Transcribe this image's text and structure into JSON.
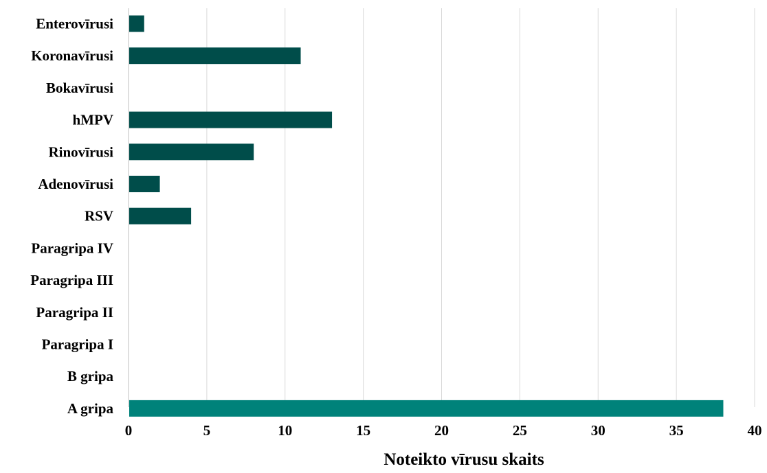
{
  "chart_data": {
    "type": "bar",
    "orientation": "horizontal",
    "categories": [
      "Enterovīrusi",
      "Koronavīrusi",
      "Bokavīrusi",
      "hMPV",
      "Rinovīrusi",
      "Adenovīrusi",
      "RSV",
      "Paragripa IV",
      "Paragripa III",
      "Paragripa II",
      "Paragripa I",
      "B gripa",
      "A gripa"
    ],
    "values": [
      1,
      11,
      0,
      13,
      8,
      2,
      4,
      0,
      0,
      0,
      0,
      0,
      38
    ],
    "bar_colors": [
      "#004d4a",
      "#004d4a",
      "#004d4a",
      "#004d4a",
      "#004d4a",
      "#004d4a",
      "#004d4a",
      "#004d4a",
      "#004d4a",
      "#004d4a",
      "#004d4a",
      "#004d4a",
      "#00827a"
    ],
    "title": "",
    "xlabel": "Noteikto vīrusu skaits",
    "ylabel": "",
    "xlim": [
      0,
      40
    ],
    "xticks": [
      "0",
      "5",
      "10",
      "15",
      "20",
      "25",
      "30",
      "35",
      "40"
    ],
    "grid": "vertical",
    "legend": "none"
  }
}
